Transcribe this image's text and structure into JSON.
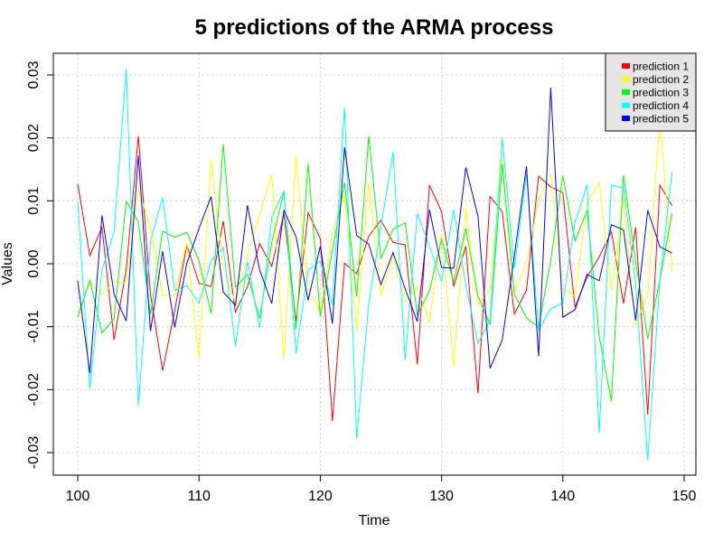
{
  "chart_data": {
    "type": "line",
    "title": "5 predictions of the ARMA process",
    "xlabel": "Time",
    "ylabel": "Values",
    "xlim": [
      100,
      149
    ],
    "ylim": [
      -0.031,
      0.031
    ],
    "xticks": [
      100,
      110,
      120,
      130,
      140,
      150
    ],
    "xtick_labels": [
      "100",
      "110",
      "120",
      "130",
      "140",
      "150"
    ],
    "yticks": [
      -0.03,
      -0.02,
      -0.01,
      0.0,
      0.01,
      0.02,
      0.03
    ],
    "ytick_labels": [
      "-0.03",
      "-0.02",
      "-0.01",
      "0.00",
      "0.01",
      "0.02",
      "0.03"
    ],
    "grid": true,
    "legend_position": "top-right",
    "x": [
      100,
      101,
      102,
      103,
      104,
      105,
      106,
      107,
      108,
      109,
      110,
      111,
      112,
      113,
      114,
      115,
      116,
      117,
      118,
      119,
      120,
      121,
      122,
      123,
      124,
      125,
      126,
      127,
      128,
      129,
      130,
      131,
      132,
      133,
      134,
      135,
      136,
      137,
      138,
      139,
      140,
      141,
      142,
      143,
      144,
      145,
      146,
      147,
      148,
      149
    ],
    "series": [
      {
        "name": "prediction 1",
        "color": "#ff0000",
        "values": [
          0.0127,
          0.0013,
          0.0058,
          -0.0121,
          -0.0009,
          0.0203,
          -0.0049,
          -0.017,
          -0.0074,
          0.003,
          -0.0031,
          -0.0036,
          0.0068,
          -0.0077,
          -0.0036,
          0.0032,
          -0.0004,
          0.008,
          -0.0092,
          0.0081,
          0.004,
          -0.025,
          0.0001,
          -0.0016,
          0.0044,
          0.0069,
          0.0034,
          0.003,
          -0.016,
          0.0125,
          0.0083,
          -0.0036,
          0.0028,
          -0.0206,
          0.0107,
          0.0083,
          -0.008,
          -0.0042,
          0.0139,
          0.0122,
          0.0113,
          -0.0069,
          -0.0021,
          0.0011,
          0.0051,
          -0.0063,
          0.0058,
          -0.024,
          0.0125,
          0.0092
        ]
      },
      {
        "name": "prediction 2",
        "color": "#ffff00",
        "values": [
          -0.0079,
          -0.0029,
          -0.005,
          -0.0029,
          -0.003,
          0.0119,
          0.0058,
          -0.005,
          -0.005,
          0.0034,
          -0.0152,
          0.0166,
          -0.0007,
          -0.0062,
          0.0011,
          0.0078,
          0.0142,
          -0.0152,
          0.0171,
          -0.0039,
          -0.0077,
          0.0049,
          0.011,
          -0.0107,
          0.0128,
          -0.0051,
          0.0013,
          -0.0061,
          -0.0035,
          -0.0093,
          0.0048,
          -0.0163,
          0.0089,
          -0.0065,
          -0.0042,
          0.0168,
          -0.0048,
          0.0002,
          0.0101,
          0.0143,
          -0.004,
          -0.0051,
          0.0096,
          0.013,
          -0.0042,
          0.0103,
          -0.0098,
          -0.0048,
          0.0233,
          -0.0013
        ]
      },
      {
        "name": "prediction 3",
        "color": "#00ff00",
        "values": [
          -0.0085,
          -0.0026,
          -0.011,
          -0.0087,
          0.0099,
          0.0067,
          -0.0081,
          0.0052,
          0.0042,
          0.005,
          0.0005,
          -0.0079,
          0.019,
          -0.0037,
          -0.0017,
          -0.0087,
          0.0034,
          0.0114,
          -0.0104,
          0.0159,
          -0.0084,
          0.0021,
          0.0129,
          -0.0052,
          0.0203,
          0.0008,
          0.0055,
          0.0065,
          -0.0081,
          -0.0043,
          0.0039,
          -0.0029,
          0.0056,
          -0.0051,
          -0.0097,
          0.0159,
          -0.0049,
          -0.0086,
          -0.0101,
          0.0005,
          0.014,
          0.0036,
          0.0085,
          -0.0116,
          -0.0218,
          0.0141,
          0.0004,
          -0.0119,
          -0.0026,
          0.008
        ]
      },
      {
        "name": "prediction 4",
        "color": "#00ffff",
        "values": [
          0.0099,
          -0.0198,
          -0.001,
          0.0051,
          0.031,
          -0.0226,
          0.0036,
          0.0105,
          -0.0042,
          -0.0035,
          -0.0063,
          0.0005,
          0.0026,
          -0.0131,
          0.0004,
          -0.0102,
          0.0074,
          0.0116,
          -0.0142,
          -0.001,
          0.0004,
          -0.0065,
          0.0248,
          -0.0278,
          -0.0062,
          0.0059,
          0.0177,
          -0.0153,
          0.008,
          0.0028,
          -0.0028,
          0.0086,
          -0.0034,
          -0.0127,
          -0.0089,
          0.02,
          -0.0008,
          0.0143,
          -0.0105,
          -0.0072,
          -0.0062,
          0.0066,
          0.0125,
          -0.0268,
          0.0125,
          0.012,
          -0.003,
          -0.0312,
          -0.0026,
          0.0146
        ]
      },
      {
        "name": "prediction 5",
        "color": "#0000ff",
        "values": [
          -0.0027,
          -0.0174,
          0.0077,
          -0.0048,
          -0.0091,
          0.0172,
          -0.0107,
          0.002,
          -0.0101,
          0.0001,
          0.0056,
          0.0107,
          -0.0045,
          -0.0066,
          0.0093,
          -0.001,
          -0.0063,
          0.0085,
          0.0043,
          -0.0058,
          0.0028,
          -0.0095,
          0.0185,
          0.0045,
          0.0031,
          -0.0033,
          0.0018,
          -0.004,
          -0.0092,
          0.0086,
          -0.0006,
          -0.0007,
          0.0153,
          0.0076,
          -0.0166,
          -0.0121,
          0.0012,
          0.0155,
          -0.0147,
          0.028,
          -0.0085,
          -0.0073,
          -0.0017,
          -0.0027,
          0.0062,
          0.0054,
          -0.009,
          0.0085,
          0.0027,
          0.0017
        ]
      }
    ]
  }
}
